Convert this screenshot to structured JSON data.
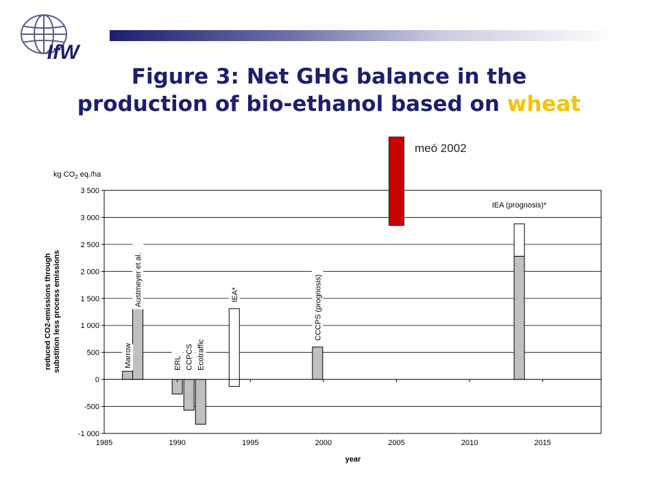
{
  "header": {
    "logo_text": "IfW",
    "title_line1": "Figure 3: Net GHG balance in the",
    "title_line2_prefix": "production of bio-ethanol based on ",
    "title_highlight": "wheat",
    "colors": {
      "title": "#1c1f6e",
      "highlight": "#f5c400",
      "bar": "#1c1f6e"
    }
  },
  "chart_data": {
    "type": "bar",
    "title": "",
    "xlabel": "year",
    "ylabel": "reduced CO2-emissions through substition less process emissions",
    "ylabel_lines": [
      "reduced CO2-emissions through",
      "substition less process emissions"
    ],
    "unit_label": "kg CO2 eq./ha",
    "xlim": [
      1985,
      2019
    ],
    "ylim": [
      -1000,
      3500
    ],
    "xticks": [
      1985,
      1990,
      1995,
      2000,
      2005,
      2010,
      2015
    ],
    "yticks": [
      -1000,
      -500,
      0,
      500,
      1000,
      1500,
      2000,
      2500,
      3000,
      3500
    ],
    "ytick_labels": [
      "-1 000",
      "-500",
      "0",
      "500",
      "1 000",
      "1 500",
      "2 000",
      "2 500",
      "3 000",
      "3 500"
    ],
    "grid": "horizontal",
    "bars": [
      {
        "label": "Marrow",
        "x": 1986.6,
        "value": 150,
        "fill": "#c0c0c0"
      },
      {
        "label": "Austmeyer et al.",
        "x": 1987.3,
        "value": 1320,
        "fill": "#c0c0c0"
      },
      {
        "label": "ERL",
        "x": 1990.0,
        "value": -270,
        "fill": "#c0c0c0"
      },
      {
        "label": "CCPCS",
        "x": 1990.8,
        "value": -570,
        "fill": "#c0c0c0"
      },
      {
        "label": "Ecotraffic",
        "x": 1991.6,
        "value": -830,
        "fill": "#c0c0c0"
      },
      {
        "label": "IEA*",
        "x": 1993.9,
        "value_low": -130,
        "value_high": 1310,
        "fill": "#ffffff"
      },
      {
        "label": "CCCPS (prognosis)",
        "x": 1999.6,
        "value": 600,
        "fill": "#c0c0c0"
      },
      {
        "label": "",
        "x": 2013.4,
        "value": 2280,
        "fill": "#c0c0c0"
      },
      {
        "label": "IEA (prognosis)*",
        "x": 2013.4,
        "value_low": 2280,
        "value_high": 2880,
        "fill": "#ffffff"
      }
    ],
    "annotation": {
      "label": "meó 2002",
      "value_low": 2850,
      "value_high": 4300,
      "fill": "#cc0000"
    }
  }
}
